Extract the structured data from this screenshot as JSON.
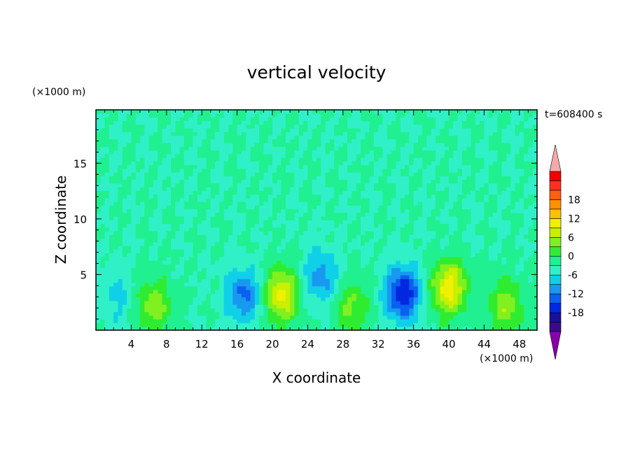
{
  "chart_data": {
    "type": "heatmap",
    "title": "vertical velocity",
    "xlabel": "X coordinate",
    "ylabel": "Z coordinate",
    "x_unit_label": "(×1000 m)",
    "y_unit_label": "(×1000 m)",
    "time_label": "t=608400 s",
    "xlim": [
      0,
      50
    ],
    "ylim": [
      0,
      19.8
    ],
    "x_ticks": [
      4,
      8,
      12,
      16,
      20,
      24,
      28,
      32,
      36,
      40,
      44,
      48
    ],
    "y_ticks": [
      5,
      10,
      15
    ],
    "colorbar": {
      "min": -21,
      "max": 21,
      "step": 3,
      "tick_values": [
        18,
        12,
        6,
        0,
        -6,
        -12,
        -18
      ],
      "extend": "both",
      "colors": [
        "#8800aa",
        "#3a0a8c",
        "#1a10a0",
        "#0028e0",
        "#0a60f0",
        "#1898f0",
        "#10d0e8",
        "#30f0c8",
        "#20f090",
        "#30ec30",
        "#80f020",
        "#c8f000",
        "#f0f000",
        "#ffc000",
        "#ff9000",
        "#ff6010",
        "#ff3020",
        "#f00000",
        "#f4aaaa"
      ]
    },
    "features": [
      {
        "x": 6.5,
        "z": 2.2,
        "w": 8
      },
      {
        "x": 16.8,
        "z": 3.2,
        "w": -10
      },
      {
        "x": 21.0,
        "z": 3.2,
        "w": 13
      },
      {
        "x": 25.5,
        "z": 4.8,
        "w": -8
      },
      {
        "x": 29.0,
        "z": 2.0,
        "w": 7
      },
      {
        "x": 34.8,
        "z": 3.3,
        "w": -15
      },
      {
        "x": 40.0,
        "z": 3.8,
        "w": 14
      },
      {
        "x": 46.5,
        "z": 2.2,
        "w": 8
      },
      {
        "x": 2.5,
        "z": 3.0,
        "w": -4
      }
    ]
  }
}
